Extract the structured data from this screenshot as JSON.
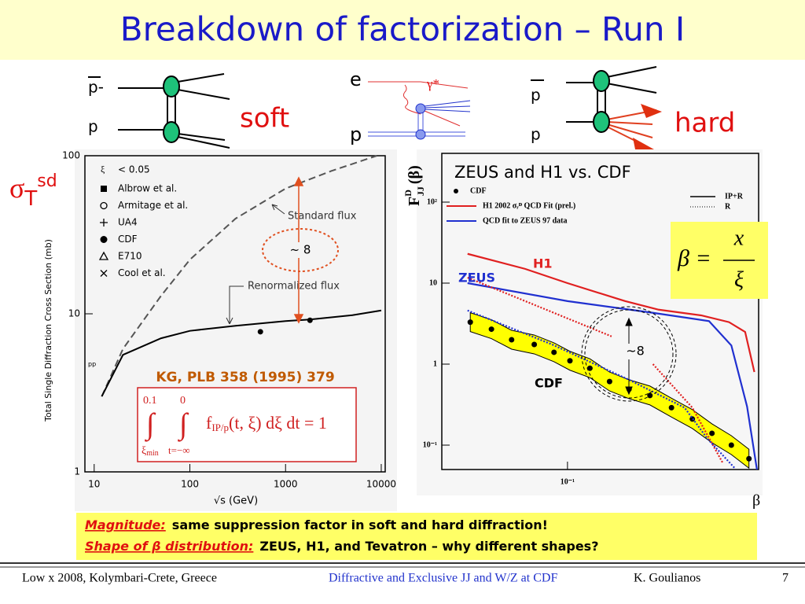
{
  "header": {
    "title": "Breakdown of factorization – Run I"
  },
  "diagrams": {
    "soft": {
      "top": "p-",
      "bottom": "p",
      "caption": "soft"
    },
    "dis": {
      "top": "e",
      "bottom": "p",
      "boson": "γ*"
    },
    "hard": {
      "top": "p",
      "bottom": "p",
      "caption": "hard"
    }
  },
  "chart_data": [
    {
      "type": "line",
      "log_x": true,
      "log_y": true,
      "xlim": [
        8,
        11000
      ],
      "ylim": [
        1,
        100
      ],
      "xticks": [
        10,
        100,
        1000,
        10000
      ],
      "yticks": [
        1,
        10,
        100
      ],
      "xlabel": "√s (GeV)",
      "ylabel": "Total Single Diffraction Cross Section (mb)",
      "series": [
        {
          "name": "Standard flux",
          "color": "#555555",
          "dash": true,
          "x": [
            12,
            20,
            50,
            100,
            300,
            1000,
            3000,
            9000
          ],
          "values": [
            3,
            6,
            13,
            22,
            40,
            62,
            80,
            100
          ]
        },
        {
          "name": "Renormalized flux",
          "color": "#000000",
          "x": [
            12,
            20,
            50,
            100,
            300,
            1000,
            1800,
            5000,
            10000
          ],
          "values": [
            3,
            5.5,
            7,
            7.8,
            8.4,
            9,
            9.2,
            9.8,
            10.5
          ]
        },
        {
          "color": "#000000",
          "marker": "circle",
          "x": [
            546,
            1800
          ],
          "values": [
            7.7,
            9.1
          ]
        }
      ],
      "legend_title": {
        "symbol": "ξ",
        "text": "< 0.05"
      },
      "legend": [
        {
          "marker": "square",
          "label": "Albrow et al."
        },
        {
          "marker": "open-circle",
          "label": "Armitage et al."
        },
        {
          "marker": "plus",
          "label": "UA4"
        },
        {
          "marker": "circle",
          "label": "CDF"
        },
        {
          "marker": "triangle",
          "label": "E710"
        },
        {
          "marker": "cross",
          "label": "Cool et al."
        }
      ],
      "annotations": {
        "sigma": "σ",
        "sigma_sub": "T",
        "sigma_sup": "sd",
        "factor": "~ 8",
        "reference": "KG, PLB 358 (1995) 379",
        "pp": "pp"
      },
      "formula": {
        "integral": "∫",
        "upper_xi": "0.1",
        "upper_t": "0",
        "lower_xi": "ξ",
        "lower_xi_sub": "min",
        "lower_t": "t=−∞",
        "f": "f",
        "f_sub": "IP/p",
        "rest": "(t, ξ) dξ dt = 1"
      }
    },
    {
      "type": "line",
      "log_x": true,
      "log_y": true,
      "title": "ZEUS and H1 vs. CDF",
      "ylabel": {
        "main": "F",
        "sup": "D",
        "sub": "JJ",
        "arg": "(β)"
      },
      "xlabel": "β",
      "xlim": [
        0.022,
        1
      ],
      "ylim": [
        0.05,
        400
      ],
      "xticks": [
        {
          "value": 0.1,
          "label": "10⁻¹"
        }
      ],
      "yticks": [
        {
          "value": 0.1,
          "label": "10⁻¹"
        },
        1,
        10,
        {
          "value": 100,
          "label": "10²"
        }
      ],
      "series": [
        {
          "name": "CDF",
          "color": "#000000",
          "marker": "circle",
          "x": [
            0.031,
            0.04,
            0.051,
            0.067,
            0.085,
            0.103,
            0.131,
            0.166,
            0.21,
            0.27,
            0.35,
            0.45,
            0.57,
            0.72,
            0.89
          ],
          "values": [
            3.3,
            2.7,
            2.0,
            1.75,
            1.4,
            1.1,
            0.89,
            0.61,
            0.49,
            0.41,
            0.29,
            0.21,
            0.14,
            0.1,
            0.068
          ]
        },
        {
          "name": "H1 2002 σᵣᴰ QCD Fit (prel.)",
          "color": "#e02020",
          "x": [
            0.03,
            0.06,
            0.1,
            0.2,
            0.3,
            0.5,
            0.7,
            0.85,
            0.95
          ],
          "values": [
            23,
            15,
            10,
            6,
            4.7,
            4.0,
            3.3,
            2.5,
            0.8
          ]
        },
        {
          "name": "QCD fit to ZEUS 97 data",
          "color": "#2030d0",
          "x": [
            0.03,
            0.1,
            0.28,
            0.55,
            0.72,
            0.87,
            0.98
          ],
          "values": [
            10,
            6,
            4.3,
            3.4,
            1.7,
            0.3,
            0.05
          ]
        },
        {
          "color": "#e02020",
          "dash": true,
          "x": [
            0.03,
            0.067,
            0.17
          ],
          "values": [
            11.7,
            5.4,
            2.2
          ]
        },
        {
          "color": "#e02020",
          "dash": true,
          "x": [
            0.28,
            0.45,
            0.65
          ],
          "values": [
            1,
            0.29,
            0.06
          ]
        },
        {
          "color": "#2030d0",
          "dash": true,
          "x": [
            0.03,
            0.083,
            0.21,
            0.41,
            0.54,
            0.75
          ],
          "values": [
            4.6,
            1.75,
            0.64,
            0.29,
            0.12,
            0.052
          ]
        }
      ],
      "legend_styles": [
        {
          "label": "IP+R",
          "dash": false
        },
        {
          "label": "R",
          "dash": true
        }
      ],
      "curve_labels": [
        {
          "text": "H1",
          "color": "#e02020"
        },
        {
          "text": "ZEUS",
          "color": "#2030d0"
        },
        {
          "text": "CDF",
          "color": "#000000"
        }
      ],
      "annotations": {
        "factor": "~8"
      },
      "beta_formula": {
        "lhs": "β =",
        "num": "x",
        "den": "ξ"
      }
    }
  ],
  "notes": {
    "line1_label": "Magnitude:",
    "line1_text": "same suppression factor in soft and hard diffraction!",
    "line2_label": "Shape of β distribution:",
    "line2_text": "ZEUS, H1, and Tevatron – why different shapes?"
  },
  "footer": {
    "conference": "Low x 2008, Kolymbari-Crete, Greece",
    "talk": "Diffractive and Exclusive JJ and W/Z at CDF",
    "author": "K.  Goulianos",
    "page": 7
  }
}
